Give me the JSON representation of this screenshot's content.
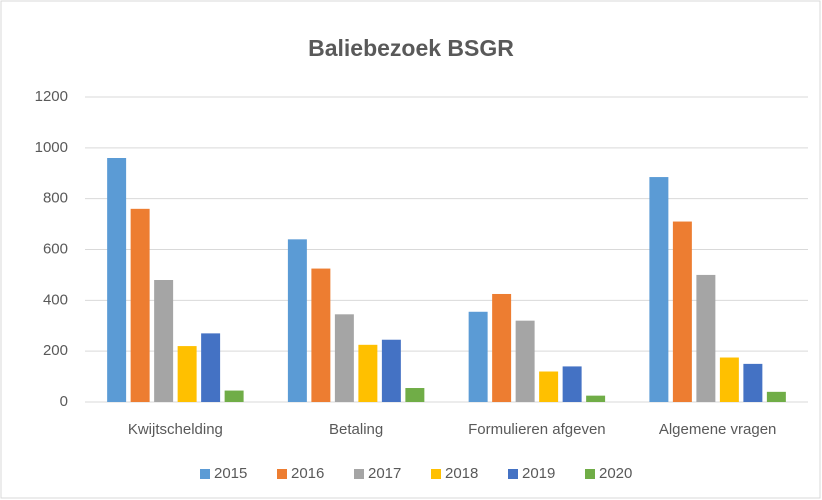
{
  "chart_data": {
    "type": "bar",
    "title": "Baliebezoek BSGR",
    "categories": [
      "Kwijtschelding",
      "Betaling",
      "Formulieren afgeven",
      "Algemene vragen"
    ],
    "series": [
      {
        "name": "2015",
        "color": "#5B9BD5",
        "values": [
          960,
          640,
          355,
          885
        ]
      },
      {
        "name": "2016",
        "color": "#ED7D31",
        "values": [
          760,
          525,
          425,
          710
        ]
      },
      {
        "name": "2017",
        "color": "#A5A5A5",
        "values": [
          480,
          345,
          320,
          500
        ]
      },
      {
        "name": "2018",
        "color": "#FFC000",
        "values": [
          220,
          225,
          120,
          175
        ]
      },
      {
        "name": "2019",
        "color": "#4472C4",
        "values": [
          270,
          245,
          140,
          150
        ]
      },
      {
        "name": "2020",
        "color": "#70AD47",
        "values": [
          45,
          55,
          25,
          40
        ]
      }
    ],
    "ylim": [
      0,
      1200
    ],
    "yticks": [
      0,
      200,
      400,
      600,
      800,
      1000,
      1200
    ],
    "grid": true,
    "legend": "bottom"
  }
}
